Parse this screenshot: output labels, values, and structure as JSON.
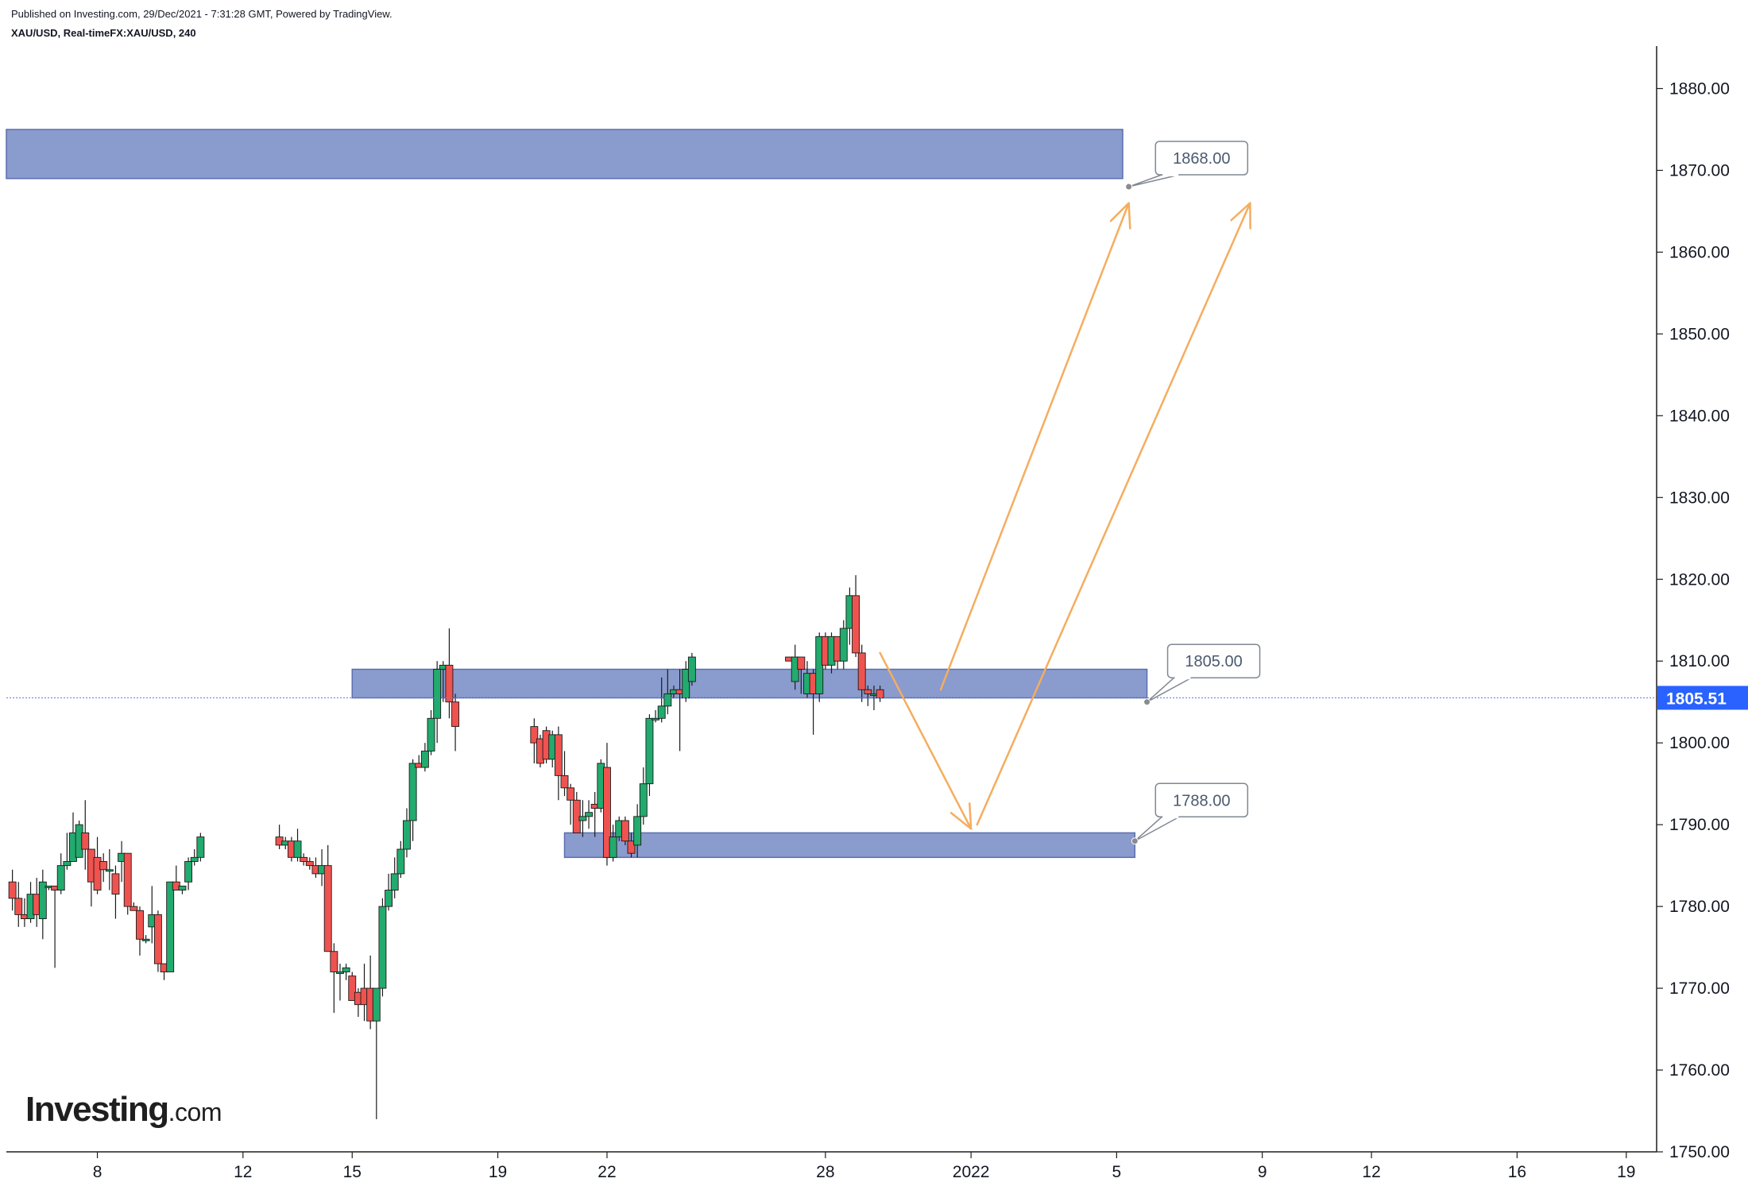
{
  "header": {
    "published": "Published on Investing.com, 29/Dec/2021 - 7:31:28 GMT, Powered by TradingView.",
    "symbol": "XAU/USD, Real-timeFX:XAU/USD, 240"
  },
  "logo": {
    "word": "Investing",
    "domain": ".com"
  },
  "colors": {
    "up": "#22ab6e",
    "down": "#ef5350",
    "zone_fill": "#8a9bcd",
    "zone_stroke": "#5a6fb0",
    "arrow": "#f5ad5f",
    "price_badge": "#2962ff",
    "price_line": "#5c7cf2",
    "text": "#131722",
    "callout_text": "#4a5a6e"
  },
  "chart_data": {
    "type": "candlestick",
    "symbol": "XAU/USD",
    "timeframe": "240",
    "y_range": [
      1750,
      1885
    ],
    "y_ticks": [
      1750,
      1760,
      1770,
      1780,
      1790,
      1800,
      1810,
      1820,
      1830,
      1840,
      1850,
      1860,
      1870,
      1880
    ],
    "y_tick_labels": [
      "1750.00",
      "1760.00",
      "1770.00",
      "1780.00",
      "1790.00",
      "1800.00",
      "1810.00",
      "1820.00",
      "1830.00",
      "1840.00",
      "1850.00",
      "1860.00",
      "1870.00",
      "1880.00"
    ],
    "x_range": [
      "2021-12-05T12:00",
      "2022-01-19T20:00"
    ],
    "x_ticks": [
      {
        "t": "2021-12-08",
        "label": "8"
      },
      {
        "t": "2021-12-12",
        "label": "12"
      },
      {
        "t": "2021-12-15",
        "label": "15"
      },
      {
        "t": "2021-12-19",
        "label": "19"
      },
      {
        "t": "2021-12-22",
        "label": "22"
      },
      {
        "t": "2021-12-28",
        "label": "28"
      },
      {
        "t": "2022-01-01",
        "label": "2022"
      },
      {
        "t": "2022-01-05",
        "label": "5"
      },
      {
        "t": "2022-01-09",
        "label": "9"
      },
      {
        "t": "2022-01-12",
        "label": "12"
      },
      {
        "t": "2022-01-16",
        "label": "16"
      },
      {
        "t": "2022-01-19",
        "label": "19"
      }
    ],
    "last_price": 1805.51,
    "last_price_label": "1805.51",
    "candles": [
      {
        "t": "2021-12-05T16:00",
        "o": 1783.0,
        "h": 1784.5,
        "l": 1779.5,
        "c": 1781.0
      },
      {
        "t": "2021-12-05T20:00",
        "o": 1781.0,
        "h": 1783.0,
        "l": 1777.5,
        "c": 1779.0
      },
      {
        "t": "2021-12-06T00:00",
        "o": 1779.0,
        "h": 1781.0,
        "l": 1777.5,
        "c": 1778.5
      },
      {
        "t": "2021-12-06T04:00",
        "o": 1778.5,
        "h": 1783.0,
        "l": 1778.0,
        "c": 1781.5
      },
      {
        "t": "2021-12-06T08:00",
        "o": 1781.5,
        "h": 1783.5,
        "l": 1777.5,
        "c": 1779.0
      },
      {
        "t": "2021-12-06T12:00",
        "o": 1778.5,
        "h": 1784.5,
        "l": 1776.0,
        "c": 1783.0
      },
      {
        "t": "2021-12-06T16:00",
        "o": 1782.5,
        "h": 1782.5,
        "l": 1782.0,
        "c": 1782.5
      },
      {
        "t": "2021-12-06T20:00",
        "o": 1782.5,
        "h": 1782.5,
        "l": 1772.5,
        "c": 1782.0
      },
      {
        "t": "2021-12-07T00:00",
        "o": 1782.0,
        "h": 1786.5,
        "l": 1781.5,
        "c": 1785.0
      },
      {
        "t": "2021-12-07T04:00",
        "o": 1785.0,
        "h": 1789.0,
        "l": 1784.5,
        "c": 1785.5
      },
      {
        "t": "2021-12-07T08:00",
        "o": 1785.5,
        "h": 1791.5,
        "l": 1785.5,
        "c": 1789.0
      },
      {
        "t": "2021-12-07T12:00",
        "o": 1786.0,
        "h": 1790.5,
        "l": 1786.0,
        "c": 1790.0
      },
      {
        "t": "2021-12-07T16:00",
        "o": 1789.0,
        "h": 1793.0,
        "l": 1784.5,
        "c": 1787.0
      },
      {
        "t": "2021-12-07T20:00",
        "o": 1787.0,
        "h": 1787.0,
        "l": 1780.0,
        "c": 1783.0
      },
      {
        "t": "2021-12-08T00:00",
        "o": 1786.0,
        "h": 1788.5,
        "l": 1781.5,
        "c": 1782.0
      },
      {
        "t": "2021-12-08T04:00",
        "o": 1785.5,
        "h": 1786.5,
        "l": 1783.0,
        "c": 1784.5
      },
      {
        "t": "2021-12-08T08:00",
        "o": 1784.5,
        "h": 1787.0,
        "l": 1782.0,
        "c": 1784.5
      },
      {
        "t": "2021-12-08T12:00",
        "o": 1784.0,
        "h": 1785.0,
        "l": 1778.5,
        "c": 1781.5
      },
      {
        "t": "2021-12-08T16:00",
        "o": 1785.5,
        "h": 1788.0,
        "l": 1783.0,
        "c": 1786.5
      },
      {
        "t": "2021-12-08T20:00",
        "o": 1786.5,
        "h": 1786.5,
        "l": 1779.0,
        "c": 1780.0
      },
      {
        "t": "2021-12-09T00:00",
        "o": 1780.0,
        "h": 1780.5,
        "l": 1779.5,
        "c": 1779.5
      },
      {
        "t": "2021-12-09T04:00",
        "o": 1779.5,
        "h": 1780.0,
        "l": 1774.0,
        "c": 1776.0
      },
      {
        "t": "2021-12-09T08:00",
        "o": 1776.0,
        "h": 1776.5,
        "l": 1775.5,
        "c": 1776.0
      },
      {
        "t": "2021-12-09T12:00",
        "o": 1777.5,
        "h": 1782.5,
        "l": 1775.5,
        "c": 1779.0
      },
      {
        "t": "2021-12-09T16:00",
        "o": 1779.0,
        "h": 1779.5,
        "l": 1772.0,
        "c": 1773.0
      },
      {
        "t": "2021-12-09T20:00",
        "o": 1773.0,
        "h": 1773.0,
        "l": 1771.0,
        "c": 1772.0
      },
      {
        "t": "2021-12-10T00:00",
        "o": 1772.0,
        "h": 1783.0,
        "l": 1772.0,
        "c": 1783.0
      },
      {
        "t": "2021-12-10T04:00",
        "o": 1783.0,
        "h": 1785.0,
        "l": 1782.0,
        "c": 1782.0
      },
      {
        "t": "2021-12-10T08:00",
        "o": 1782.0,
        "h": 1782.5,
        "l": 1781.5,
        "c": 1782.5
      },
      {
        "t": "2021-12-10T12:00",
        "o": 1783.0,
        "h": 1786.0,
        "l": 1782.0,
        "c": 1785.5
      },
      {
        "t": "2021-12-10T16:00",
        "o": 1785.5,
        "h": 1787.0,
        "l": 1785.0,
        "c": 1786.0
      },
      {
        "t": "2021-12-10T20:00",
        "o": 1786.0,
        "h": 1789.0,
        "l": 1785.5,
        "c": 1788.5
      },
      {
        "t": "2021-12-13T00:00",
        "o": 1788.5,
        "h": 1790.0,
        "l": 1787.0,
        "c": 1787.5
      },
      {
        "t": "2021-12-13T04:00",
        "o": 1787.5,
        "h": 1788.5,
        "l": 1787.0,
        "c": 1788.0
      },
      {
        "t": "2021-12-13T08:00",
        "o": 1788.0,
        "h": 1788.5,
        "l": 1785.5,
        "c": 1786.0
      },
      {
        "t": "2021-12-13T12:00",
        "o": 1786.0,
        "h": 1789.5,
        "l": 1785.5,
        "c": 1788.0
      },
      {
        "t": "2021-12-13T16:00",
        "o": 1786.0,
        "h": 1786.5,
        "l": 1785.0,
        "c": 1785.5
      },
      {
        "t": "2021-12-13T20:00",
        "o": 1785.5,
        "h": 1786.0,
        "l": 1784.5,
        "c": 1785.0
      },
      {
        "t": "2021-12-14T00:00",
        "o": 1785.0,
        "h": 1786.0,
        "l": 1783.5,
        "c": 1784.0
      },
      {
        "t": "2021-12-14T04:00",
        "o": 1784.0,
        "h": 1787.0,
        "l": 1782.5,
        "c": 1785.0
      },
      {
        "t": "2021-12-14T08:00",
        "o": 1785.0,
        "h": 1787.5,
        "l": 1775.0,
        "c": 1774.5
      },
      {
        "t": "2021-12-14T12:00",
        "o": 1774.5,
        "h": 1775.5,
        "l": 1767.0,
        "c": 1772.0
      },
      {
        "t": "2021-12-14T16:00",
        "o": 1772.0,
        "h": 1773.0,
        "l": 1768.5,
        "c": 1772.0
      },
      {
        "t": "2021-12-14T20:00",
        "o": 1772.0,
        "h": 1773.0,
        "l": 1771.0,
        "c": 1772.5
      },
      {
        "t": "2021-12-15T00:00",
        "o": 1771.5,
        "h": 1772.0,
        "l": 1768.5,
        "c": 1768.5
      },
      {
        "t": "2021-12-15T04:00",
        "o": 1769.5,
        "h": 1770.0,
        "l": 1766.5,
        "c": 1768.0
      },
      {
        "t": "2021-12-15T08:00",
        "o": 1770.0,
        "h": 1773.0,
        "l": 1766.0,
        "c": 1768.0
      },
      {
        "t": "2021-12-15T12:00",
        "o": 1770.0,
        "h": 1774.0,
        "l": 1765.0,
        "c": 1766.0
      },
      {
        "t": "2021-12-15T16:00",
        "o": 1766.0,
        "h": 1770.0,
        "l": 1754.0,
        "c": 1770.0
      },
      {
        "t": "2021-12-15T20:00",
        "o": 1770.0,
        "h": 1781.0,
        "l": 1769.0,
        "c": 1780.0
      },
      {
        "t": "2021-12-16T00:00",
        "o": 1780.0,
        "h": 1784.0,
        "l": 1779.5,
        "c": 1782.0
      },
      {
        "t": "2021-12-16T04:00",
        "o": 1782.0,
        "h": 1786.0,
        "l": 1781.0,
        "c": 1784.0
      },
      {
        "t": "2021-12-16T08:00",
        "o": 1784.0,
        "h": 1788.0,
        "l": 1783.5,
        "c": 1787.0
      },
      {
        "t": "2021-12-16T12:00",
        "o": 1787.0,
        "h": 1792.0,
        "l": 1786.0,
        "c": 1790.5
      },
      {
        "t": "2021-12-16T16:00",
        "o": 1790.5,
        "h": 1798.0,
        "l": 1788.0,
        "c": 1797.5
      },
      {
        "t": "2021-12-16T20:00",
        "o": 1797.5,
        "h": 1798.5,
        "l": 1797.0,
        "c": 1797.0
      },
      {
        "t": "2021-12-17T00:00",
        "o": 1797.0,
        "h": 1800.0,
        "l": 1796.5,
        "c": 1799.0
      },
      {
        "t": "2021-12-17T04:00",
        "o": 1799.0,
        "h": 1804.0,
        "l": 1798.5,
        "c": 1803.0
      },
      {
        "t": "2021-12-17T08:00",
        "o": 1803.0,
        "h": 1810.0,
        "l": 1800.0,
        "c": 1809.0
      },
      {
        "t": "2021-12-17T12:00",
        "o": 1809.0,
        "h": 1810.0,
        "l": 1805.0,
        "c": 1809.5
      },
      {
        "t": "2021-12-17T16:00",
        "o": 1809.5,
        "h": 1814.0,
        "l": 1803.0,
        "c": 1805.0
      },
      {
        "t": "2021-12-17T20:00",
        "o": 1805.0,
        "h": 1806.0,
        "l": 1799.0,
        "c": 1802.0
      },
      {
        "t": "2021-12-20T00:00",
        "o": 1802.0,
        "h": 1803.0,
        "l": 1797.5,
        "c": 1800.0
      },
      {
        "t": "2021-12-20T04:00",
        "o": 1800.5,
        "h": 1801.0,
        "l": 1797.0,
        "c": 1797.5
      },
      {
        "t": "2021-12-20T08:00",
        "o": 1801.5,
        "h": 1802.0,
        "l": 1797.5,
        "c": 1798.0
      },
      {
        "t": "2021-12-20T12:00",
        "o": 1798.0,
        "h": 1801.5,
        "l": 1797.0,
        "c": 1801.0
      },
      {
        "t": "2021-12-20T16:00",
        "o": 1801.0,
        "h": 1802.0,
        "l": 1793.0,
        "c": 1796.0
      },
      {
        "t": "2021-12-20T20:00",
        "o": 1796.0,
        "h": 1799.0,
        "l": 1793.5,
        "c": 1794.5
      },
      {
        "t": "2021-12-21T00:00",
        "o": 1794.5,
        "h": 1795.0,
        "l": 1790.0,
        "c": 1793.0
      },
      {
        "t": "2021-12-21T04:00",
        "o": 1793.0,
        "h": 1794.0,
        "l": 1789.0,
        "c": 1789.0
      },
      {
        "t": "2021-12-21T08:00",
        "o": 1790.5,
        "h": 1793.0,
        "l": 1788.5,
        "c": 1791.0
      },
      {
        "t": "2021-12-21T12:00",
        "o": 1791.0,
        "h": 1793.0,
        "l": 1789.5,
        "c": 1791.5
      },
      {
        "t": "2021-12-21T16:00",
        "o": 1792.5,
        "h": 1794.0,
        "l": 1788.5,
        "c": 1792.0
      },
      {
        "t": "2021-12-21T20:00",
        "o": 1792.0,
        "h": 1798.0,
        "l": 1791.5,
        "c": 1797.5
      },
      {
        "t": "2021-12-22T00:00",
        "o": 1797.0,
        "h": 1800.0,
        "l": 1785.0,
        "c": 1786.0
      },
      {
        "t": "2021-12-22T04:00",
        "o": 1786.0,
        "h": 1790.0,
        "l": 1785.5,
        "c": 1788.5
      },
      {
        "t": "2021-12-22T08:00",
        "o": 1788.5,
        "h": 1791.0,
        "l": 1788.0,
        "c": 1790.5
      },
      {
        "t": "2021-12-22T12:00",
        "o": 1790.5,
        "h": 1791.0,
        "l": 1787.5,
        "c": 1788.0
      },
      {
        "t": "2021-12-22T16:00",
        "o": 1788.0,
        "h": 1789.0,
        "l": 1786.0,
        "c": 1786.5
      },
      {
        "t": "2021-12-22T20:00",
        "o": 1787.5,
        "h": 1792.5,
        "l": 1786.0,
        "c": 1791.0
      },
      {
        "t": "2021-12-23T00:00",
        "o": 1791.0,
        "h": 1797.0,
        "l": 1790.0,
        "c": 1795.0
      },
      {
        "t": "2021-12-23T04:00",
        "o": 1795.0,
        "h": 1803.5,
        "l": 1793.5,
        "c": 1803.0
      },
      {
        "t": "2021-12-23T08:00",
        "o": 1803.0,
        "h": 1804.0,
        "l": 1802.5,
        "c": 1803.0
      },
      {
        "t": "2021-12-23T12:00",
        "o": 1803.0,
        "h": 1808.0,
        "l": 1802.5,
        "c": 1804.5
      },
      {
        "t": "2021-12-23T16:00",
        "o": 1804.5,
        "h": 1809.0,
        "l": 1803.5,
        "c": 1806.0
      },
      {
        "t": "2021-12-23T20:00",
        "o": 1806.0,
        "h": 1807.0,
        "l": 1805.5,
        "c": 1806.5
      },
      {
        "t": "2021-12-24T00:00",
        "o": 1806.5,
        "h": 1809.0,
        "l": 1799.0,
        "c": 1806.0
      },
      {
        "t": "2021-12-24T04:00",
        "o": 1805.5,
        "h": 1810.0,
        "l": 1805.0,
        "c": 1809.0
      },
      {
        "t": "2021-12-24T08:00",
        "o": 1807.5,
        "h": 1811.0,
        "l": 1807.0,
        "c": 1810.5
      },
      {
        "t": "2021-12-27T00:00",
        "o": 1810.5,
        "h": 1810.5,
        "l": 1810.0,
        "c": 1810.0
      },
      {
        "t": "2021-12-27T04:00",
        "o": 1807.5,
        "h": 1812.0,
        "l": 1806.5,
        "c": 1810.5
      },
      {
        "t": "2021-12-27T08:00",
        "o": 1810.5,
        "h": 1810.5,
        "l": 1806.0,
        "c": 1809.0
      },
      {
        "t": "2021-12-27T12:00",
        "o": 1806.0,
        "h": 1810.0,
        "l": 1805.5,
        "c": 1808.5
      },
      {
        "t": "2021-12-27T16:00",
        "o": 1808.5,
        "h": 1809.0,
        "l": 1801.0,
        "c": 1806.0
      },
      {
        "t": "2021-12-27T20:00",
        "o": 1806.0,
        "h": 1813.5,
        "l": 1805.0,
        "c": 1813.0
      },
      {
        "t": "2021-12-28T00:00",
        "o": 1813.0,
        "h": 1813.5,
        "l": 1809.0,
        "c": 1809.5
      },
      {
        "t": "2021-12-28T04:00",
        "o": 1809.5,
        "h": 1813.5,
        "l": 1808.5,
        "c": 1813.0
      },
      {
        "t": "2021-12-28T08:00",
        "o": 1813.0,
        "h": 1813.0,
        "l": 1809.0,
        "c": 1810.0
      },
      {
        "t": "2021-12-28T12:00",
        "o": 1810.0,
        "h": 1815.0,
        "l": 1809.0,
        "c": 1814.0
      },
      {
        "t": "2021-12-28T16:00",
        "o": 1814.0,
        "h": 1819.0,
        "l": 1812.0,
        "c": 1818.0
      },
      {
        "t": "2021-12-28T20:00",
        "o": 1818.0,
        "h": 1820.5,
        "l": 1810.5,
        "c": 1811.0
      },
      {
        "t": "2021-12-29T00:00",
        "o": 1811.0,
        "h": 1812.0,
        "l": 1805.0,
        "c": 1806.5
      },
      {
        "t": "2021-12-29T04:00",
        "o": 1806.5,
        "h": 1807.0,
        "l": 1804.5,
        "c": 1806.0
      },
      {
        "t": "2021-12-29T08:00",
        "o": 1806.0,
        "h": 1807.0,
        "l": 1804.0,
        "c": 1806.0
      },
      {
        "t": "2021-12-29T12:00",
        "o": 1806.5,
        "h": 1807.0,
        "l": 1805.0,
        "c": 1805.5
      }
    ],
    "zones": [
      {
        "name": "upper",
        "from": "2021-12-05T12:00",
        "to": "2022-01-05T04:00",
        "y_low": 1869.0,
        "y_high": 1875.0
      },
      {
        "name": "middle",
        "from": "2021-12-15T00:00",
        "to": "2022-01-05T20:00",
        "y_low": 1805.5,
        "y_high": 1809.0
      },
      {
        "name": "lower",
        "from": "2021-12-20T20:00",
        "to": "2022-01-05T12:00",
        "y_low": 1786.0,
        "y_high": 1789.0
      }
    ],
    "callouts": [
      {
        "label": "1868.00",
        "anchor_t": "2022-01-05T08:00",
        "anchor_y": 1868.0,
        "box_t": "2022-01-07T08:00",
        "box_y": 1871.5
      },
      {
        "label": "1805.00",
        "anchor_t": "2022-01-05T20:00",
        "anchor_y": 1805.0,
        "box_t": "2022-01-07T16:00",
        "box_y": 1810.0
      },
      {
        "label": "1788.00",
        "anchor_t": "2022-01-05T12:00",
        "anchor_y": 1788.0,
        "box_t": "2022-01-07T08:00",
        "box_y": 1793.0
      }
    ],
    "arrows": [
      {
        "from_t": "2021-12-29T12:00",
        "from_y": 1811.0,
        "to_t": "2022-01-01T00:00",
        "to_y": 1789.5
      },
      {
        "from_t": "2021-12-31T04:00",
        "from_y": 1806.5,
        "to_t": "2022-01-05T08:00",
        "to_y": 1866.0
      },
      {
        "from_t": "2022-01-01T04:00",
        "from_y": 1790.0,
        "to_t": "2022-01-08T16:00",
        "to_y": 1866.0
      }
    ]
  }
}
